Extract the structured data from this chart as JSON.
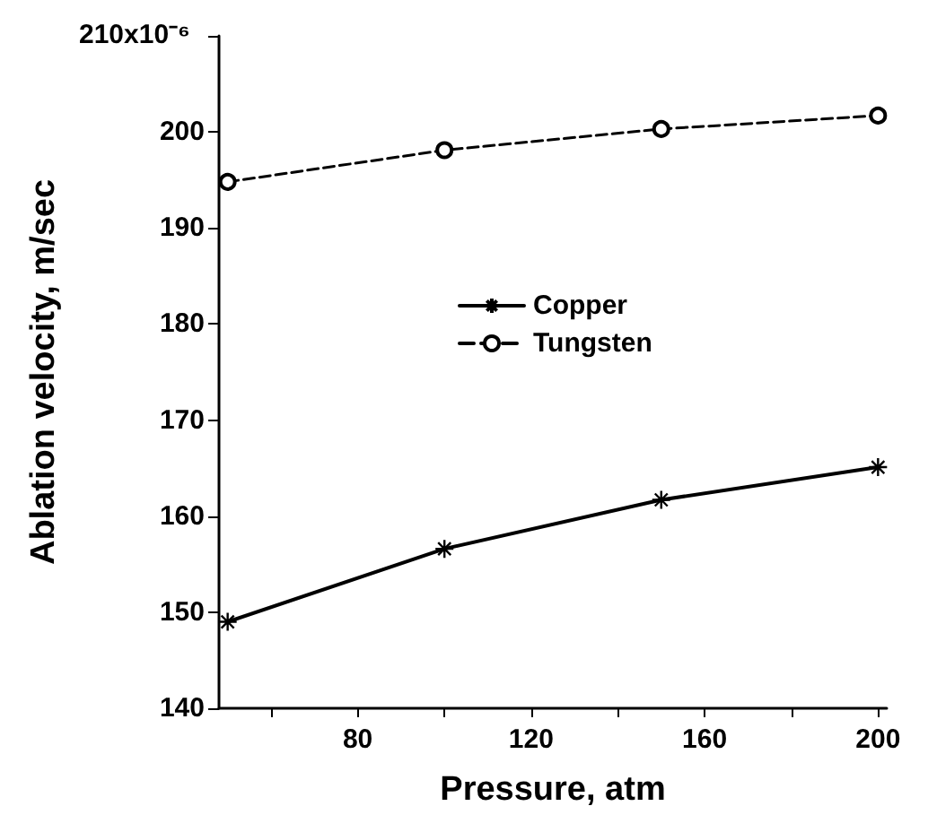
{
  "chart_data": {
    "type": "line",
    "xlabel": "Pressure, atm",
    "ylabel": "Ablation velocity, m/sec",
    "x": [
      50,
      100,
      150,
      200
    ],
    "series": [
      {
        "name": "Copper",
        "color": "#000000",
        "values": [
          149.0,
          156.6,
          161.7,
          165.1
        ],
        "marker": "cross",
        "line_style": "solid"
      },
      {
        "name": "Tungsten",
        "color": "#000000",
        "values": [
          194.8,
          198.1,
          200.3,
          201.7
        ],
        "marker": "circle",
        "line_style": "dashed"
      }
    ],
    "xlim": [
      48,
      202
    ],
    "xticks": [
      {
        "value": 60,
        "label": null
      },
      80,
      {
        "value": 100,
        "label": null
      },
      120,
      {
        "value": 140,
        "label": null
      },
      160,
      {
        "value": 180,
        "label": null
      },
      200
    ],
    "ylim": [
      140,
      210
    ],
    "yticks": [
      140,
      150,
      160,
      170,
      180,
      190,
      200,
      {
        "value": 210,
        "label": null
      }
    ],
    "annotations": [
      "210x10⁻⁶"
    ],
    "grid": false,
    "legend": "center"
  }
}
